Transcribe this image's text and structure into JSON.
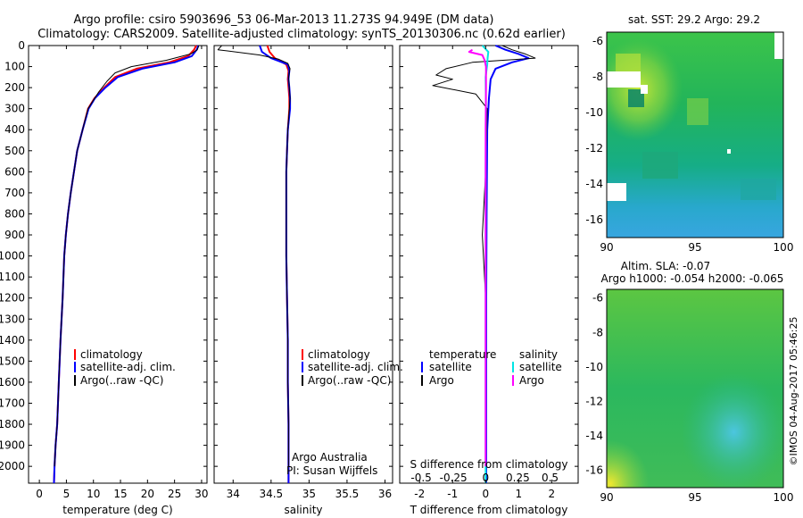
{
  "figure": {
    "title_line1": "Argo profile: csiro 5903696_53 06-Mar-2013 11.273S 94.949E (DM data)",
    "title_line2": "Climatology: CARS2009. Satellite-adjusted climatology: synTS_20130306.nc (0.62d earlier)",
    "watermark": "©IMOS 04-Aug-2017 05:46:25",
    "credit_line1": "Argo Australia",
    "credit_line2": "PI: Susan Wijffels",
    "colors": {
      "climatology": "#ff0000",
      "satellite": "#0000ff",
      "argo": "#000000",
      "sal_satellite": "#00e5e5",
      "sal_argo": "#ff00ff"
    }
  },
  "chart_data": [
    {
      "type": "line",
      "name": "temperature",
      "xlabel": "temperature (deg C)",
      "xlim": [
        -2,
        31
      ],
      "xticks": [
        "0",
        "5",
        "10",
        "15",
        "20",
        "25",
        "30"
      ],
      "xtick_values": [
        0,
        5,
        10,
        15,
        20,
        25,
        30
      ],
      "ylim": [
        0,
        2080
      ],
      "yticks": [
        "0",
        "100",
        "200",
        "300",
        "400",
        "500",
        "600",
        "700",
        "800",
        "900",
        "1000",
        "1100",
        "1200",
        "1300",
        "1400",
        "1500",
        "1600",
        "1700",
        "1800",
        "1900",
        "2000"
      ],
      "ytick_values": [
        0,
        100,
        200,
        300,
        400,
        500,
        600,
        700,
        800,
        900,
        1000,
        1100,
        1200,
        1300,
        1400,
        1500,
        1600,
        1700,
        1800,
        1900,
        2000
      ],
      "legend": [
        "climatology",
        "satellite-adj. clim.",
        "Argo(..raw -QC)"
      ],
      "series": [
        {
          "name": "climatology",
          "color": "#ff0000",
          "width": 2,
          "points": [
            [
              29.0,
              0
            ],
            [
              28.6,
              20
            ],
            [
              27.5,
              50
            ],
            [
              24.0,
              80
            ],
            [
              18.0,
              110
            ],
            [
              14.0,
              150
            ],
            [
              12.0,
              200
            ],
            [
              10.2,
              250
            ],
            [
              9.0,
              300
            ],
            [
              8.0,
              400
            ],
            [
              7.0,
              500
            ],
            [
              6.4,
              600
            ],
            [
              5.8,
              700
            ],
            [
              5.3,
              800
            ],
            [
              4.9,
              900
            ],
            [
              4.6,
              1000
            ],
            [
              4.3,
              1200
            ],
            [
              3.9,
              1400
            ],
            [
              3.6,
              1600
            ],
            [
              3.3,
              1800
            ],
            [
              3.0,
              1900
            ],
            [
              2.8,
              2000
            ],
            [
              2.7,
              2080
            ]
          ]
        },
        {
          "name": "satellite-adj. clim.",
          "color": "#0000ff",
          "width": 2,
          "points": [
            [
              29.4,
              0
            ],
            [
              29.1,
              20
            ],
            [
              28.2,
              50
            ],
            [
              25.0,
              80
            ],
            [
              19.0,
              110
            ],
            [
              14.5,
              150
            ],
            [
              12.2,
              200
            ],
            [
              10.3,
              250
            ],
            [
              9.1,
              300
            ],
            [
              8.0,
              400
            ],
            [
              7.0,
              500
            ],
            [
              6.4,
              600
            ],
            [
              5.8,
              700
            ],
            [
              5.3,
              800
            ],
            [
              4.9,
              900
            ],
            [
              4.6,
              1000
            ],
            [
              4.3,
              1200
            ],
            [
              3.9,
              1400
            ],
            [
              3.6,
              1600
            ],
            [
              3.3,
              1800
            ],
            [
              3.0,
              1900
            ],
            [
              2.8,
              2000
            ],
            [
              2.7,
              2080
            ]
          ]
        },
        {
          "name": "Argo(..raw -QC)",
          "color": "#000000",
          "width": 1,
          "points": [
            [
              29.5,
              0
            ],
            [
              29.2,
              20
            ],
            [
              28.0,
              40
            ],
            [
              23.5,
              70
            ],
            [
              17.0,
              100
            ],
            [
              14.0,
              130
            ],
            [
              12.5,
              170
            ],
            [
              11.0,
              220
            ],
            [
              10.0,
              260
            ],
            [
              9.0,
              300
            ],
            [
              8.0,
              400
            ],
            [
              7.0,
              500
            ],
            [
              6.4,
              600
            ],
            [
              5.8,
              700
            ],
            [
              5.3,
              800
            ],
            [
              4.9,
              900
            ],
            [
              4.6,
              1000
            ],
            [
              4.3,
              1200
            ],
            [
              3.9,
              1400
            ],
            [
              3.6,
              1600
            ],
            [
              3.3,
              1800
            ],
            [
              3.0,
              1900
            ],
            [
              2.8,
              2000
            ]
          ]
        }
      ]
    },
    {
      "type": "line",
      "name": "salinity",
      "xlabel": "salinity",
      "xlim": [
        33.75,
        36.1
      ],
      "xticks": [
        "34",
        "34.5",
        "35",
        "35.5",
        "36"
      ],
      "xtick_values": [
        34,
        34.5,
        35,
        35.5,
        36
      ],
      "ylim": [
        0,
        2080
      ],
      "legend": [
        "climatology",
        "satellite-adj. clim.",
        "Argo(..raw -QC)"
      ],
      "series": [
        {
          "name": "climatology",
          "color": "#ff0000",
          "width": 2,
          "points": [
            [
              34.45,
              0
            ],
            [
              34.48,
              30
            ],
            [
              34.55,
              60
            ],
            [
              34.7,
              90
            ],
            [
              34.73,
              120
            ],
            [
              34.72,
              160
            ],
            [
              34.73,
              200
            ],
            [
              34.74,
              250
            ],
            [
              34.74,
              300
            ],
            [
              34.72,
              400
            ],
            [
              34.71,
              500
            ],
            [
              34.7,
              600
            ],
            [
              34.7,
              700
            ],
            [
              34.7,
              800
            ],
            [
              34.7,
              900
            ],
            [
              34.7,
              1000
            ],
            [
              34.71,
              1200
            ],
            [
              34.72,
              1400
            ],
            [
              34.72,
              1600
            ],
            [
              34.73,
              1800
            ],
            [
              34.73,
              1900
            ],
            [
              34.73,
              2000
            ],
            [
              34.73,
              2080
            ]
          ]
        },
        {
          "name": "satellite-adj. clim.",
          "color": "#0000ff",
          "width": 2,
          "points": [
            [
              34.35,
              0
            ],
            [
              34.38,
              30
            ],
            [
              34.5,
              60
            ],
            [
              34.72,
              90
            ],
            [
              34.74,
              120
            ],
            [
              34.73,
              160
            ],
            [
              34.74,
              200
            ],
            [
              34.75,
              250
            ],
            [
              34.75,
              300
            ],
            [
              34.72,
              400
            ],
            [
              34.71,
              500
            ],
            [
              34.7,
              600
            ],
            [
              34.7,
              700
            ],
            [
              34.7,
              800
            ],
            [
              34.7,
              900
            ],
            [
              34.7,
              1000
            ],
            [
              34.71,
              1200
            ],
            [
              34.72,
              1400
            ],
            [
              34.72,
              1600
            ],
            [
              34.73,
              1800
            ],
            [
              34.73,
              1900
            ],
            [
              34.73,
              2000
            ],
            [
              34.73,
              2080
            ]
          ]
        },
        {
          "name": "Argo(..raw -QC)",
          "color": "#000000",
          "width": 1,
          "points": [
            [
              33.85,
              0
            ],
            [
              33.8,
              20
            ],
            [
              34.35,
              45
            ],
            [
              34.6,
              65
            ],
            [
              34.72,
              85
            ],
            [
              34.75,
              110
            ],
            [
              34.73,
              150
            ],
            [
              34.74,
              200
            ],
            [
              34.75,
              250
            ],
            [
              34.74,
              300
            ],
            [
              34.72,
              400
            ],
            [
              34.71,
              500
            ],
            [
              34.7,
              600
            ],
            [
              34.7,
              700
            ],
            [
              34.7,
              800
            ],
            [
              34.7,
              900
            ],
            [
              34.7,
              1000
            ],
            [
              34.71,
              1200
            ],
            [
              34.72,
              1400
            ],
            [
              34.72,
              1600
            ],
            [
              34.73,
              1800
            ],
            [
              34.73,
              1900
            ],
            [
              34.73,
              2000
            ]
          ]
        }
      ]
    },
    {
      "type": "line",
      "name": "difference",
      "xlabel": "T difference from climatology",
      "xlabel_top": "S difference from climatology",
      "xlim": [
        -2.6,
        2.8
      ],
      "xticks": [
        "-2",
        "-1",
        "0",
        "1",
        "2"
      ],
      "xtick_values": [
        -2,
        -1,
        0,
        1,
        2
      ],
      "xticks_top": [
        "-0.5",
        "-0.25",
        "0",
        "0.25",
        "0.5"
      ],
      "xticks_top_values": [
        -0.5,
        -0.25,
        0,
        0.25,
        0.5
      ],
      "ylim": [
        0,
        2080
      ],
      "legend_temperature_title": "temperature",
      "legend_salinity_title": "salinity",
      "legend": [
        "satellite",
        "Argo",
        "satellite",
        "Argo"
      ],
      "series": [
        {
          "name": "T satellite",
          "color": "#0000ff",
          "width": 2,
          "points": [
            [
              0.3,
              0
            ],
            [
              0.6,
              20
            ],
            [
              1.0,
              40
            ],
            [
              1.3,
              60
            ],
            [
              0.8,
              80
            ],
            [
              0.3,
              110
            ],
            [
              0.15,
              160
            ],
            [
              0.1,
              250
            ],
            [
              0.05,
              400
            ],
            [
              0.03,
              800
            ],
            [
              0.02,
              1200
            ],
            [
              0.02,
              2080
            ]
          ]
        },
        {
          "name": "T Argo",
          "color": "#000000",
          "width": 1,
          "points": [
            [
              0.5,
              0
            ],
            [
              0.8,
              20
            ],
            [
              1.2,
              40
            ],
            [
              1.5,
              60
            ],
            [
              -0.4,
              80
            ],
            [
              -1.2,
              110
            ],
            [
              -1.5,
              140
            ],
            [
              -1.0,
              160
            ],
            [
              -1.6,
              190
            ],
            [
              -0.3,
              230
            ],
            [
              0.05,
              300
            ],
            [
              0.0,
              600
            ],
            [
              -0.1,
              900
            ],
            [
              0.0,
              1200
            ],
            [
              0.0,
              2000
            ]
          ]
        },
        {
          "name": "S satellite",
          "color": "#00e5e5",
          "width": 2,
          "points": [
            [
              -0.1,
              0
            ],
            [
              0.08,
              30
            ],
            [
              0.06,
              60
            ],
            [
              0.05,
              90
            ],
            [
              0.0,
              150
            ],
            [
              0.01,
              300
            ],
            [
              0.0,
              600
            ],
            [
              0.0,
              1000
            ],
            [
              0.0,
              1500
            ],
            [
              0.0,
              2080
            ]
          ]
        },
        {
          "name": "S Argo",
          "color": "#ff00ff",
          "width": 2,
          "points": [
            [
              -0.4,
              20
            ],
            [
              -0.5,
              30
            ],
            [
              -0.1,
              45
            ],
            [
              -0.03,
              70
            ],
            [
              0.01,
              100
            ],
            [
              0.01,
              200
            ],
            [
              0.0,
              400
            ],
            [
              0.0,
              800
            ],
            [
              0.0,
              2000
            ]
          ]
        }
      ]
    },
    {
      "type": "heatmap",
      "name": "sst_map",
      "title": "sat. SST: 29.2  Argo: 29.2",
      "xlim": [
        90,
        100
      ],
      "ylim": [
        -17,
        -5.5
      ],
      "xticks": [
        "90",
        "95",
        "100"
      ],
      "xtick_values": [
        90,
        95,
        100
      ],
      "yticks": [
        "-6",
        "-8",
        "-10",
        "-12",
        "-14",
        "-16"
      ],
      "ytick_values": [
        -6,
        -8,
        -10,
        -12,
        -14,
        -16
      ],
      "marker": [
        94.949,
        -11.273
      ]
    },
    {
      "type": "heatmap",
      "name": "sla_map",
      "title_line1": "Altim. SLA: -0.07",
      "title_line2": "Argo h1000: -0.054  h2000: -0.065",
      "xlim": [
        90,
        100
      ],
      "ylim": [
        -17,
        -5.5
      ],
      "xticks": [
        "90",
        "95",
        "100"
      ],
      "xtick_values": [
        90,
        95,
        100
      ],
      "yticks": [
        "-6",
        "-8",
        "-10",
        "-12",
        "-14",
        "-16"
      ],
      "ytick_values": [
        -6,
        -8,
        -10,
        -12,
        -14,
        -16
      ],
      "marker": [
        94.949,
        -11.273
      ]
    }
  ]
}
